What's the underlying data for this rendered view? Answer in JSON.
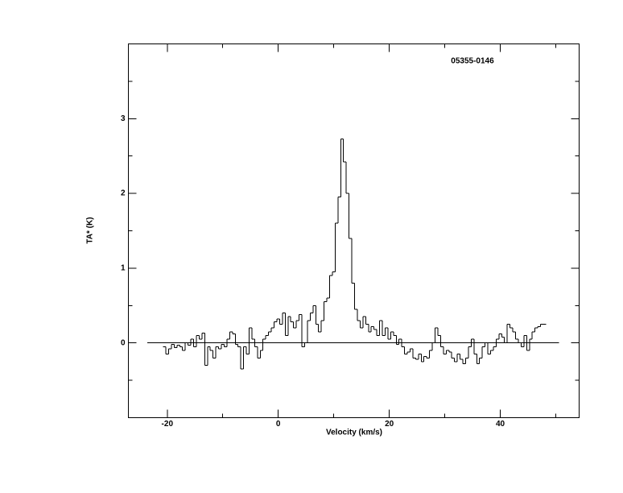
{
  "chart_data": {
    "type": "step",
    "title": "05355-0146",
    "x_label": "Velocity (km/s)",
    "y_label": "TA* (K)",
    "x": [
      -20.5,
      -20,
      -19.5,
      -19,
      -18.5,
      -18,
      -17.5,
      -17,
      -16.5,
      -16,
      -15.5,
      -15,
      -14.5,
      -14,
      -13.5,
      -13,
      -12.5,
      -12,
      -11.5,
      -11,
      -10.5,
      -10,
      -9.5,
      -9,
      -8.5,
      -8,
      -7.5,
      -7,
      -6.5,
      -6,
      -5.5,
      -5,
      -4.5,
      -4,
      -3.5,
      -3,
      -2.5,
      -2,
      -1.5,
      -1,
      -0.5,
      0,
      0.5,
      1,
      1.5,
      2,
      2.5,
      3,
      3.5,
      4,
      4.5,
      5,
      5.5,
      6,
      6.5,
      7,
      7.5,
      8,
      8.5,
      9,
      9.5,
      10,
      10.5,
      11,
      11.5,
      12,
      12.5,
      13,
      13.5,
      14,
      14.5,
      15,
      15.5,
      16,
      16.5,
      17,
      17.5,
      18,
      18.5,
      19,
      19.5,
      20,
      20.5,
      21,
      21.5,
      22,
      22.5,
      23,
      23.5,
      24,
      24.5,
      25,
      25.5,
      26,
      26.5,
      27,
      27.5,
      28,
      28.5,
      29,
      29.5,
      30,
      30.5,
      31,
      31.5,
      32,
      32.5,
      33,
      33.5,
      34,
      34.5,
      35,
      35.5,
      36,
      36.5,
      37,
      37.5,
      38,
      38.5,
      39,
      39.5,
      40,
      40.5,
      41,
      41.5,
      42,
      42.5,
      43,
      43.5,
      44,
      44.5,
      45,
      45.5,
      46,
      46.5,
      47,
      47.5,
      48
    ],
    "values": [
      -0.05,
      -0.15,
      -0.08,
      -0.02,
      -0.06,
      -0.03,
      -0.05,
      -0.1,
      0.0,
      -0.03,
      0.05,
      -0.05,
      0.1,
      0.05,
      0.13,
      -0.3,
      -0.05,
      -0.1,
      -0.2,
      -0.05,
      -0.08,
      -0.02,
      -0.05,
      0.05,
      0.15,
      0.12,
      -0.02,
      -0.05,
      -0.35,
      -0.05,
      -0.15,
      0.2,
      0.05,
      -0.05,
      -0.2,
      -0.1,
      0.05,
      0.1,
      0.15,
      0.2,
      0.28,
      0.32,
      0.25,
      0.4,
      0.1,
      0.35,
      0.28,
      0.2,
      0.3,
      0.38,
      -0.05,
      0.0,
      0.3,
      0.4,
      0.5,
      0.25,
      0.15,
      0.3,
      0.55,
      0.6,
      0.9,
      0.95,
      1.6,
      1.95,
      2.73,
      2.42,
      2.0,
      1.4,
      0.8,
      0.45,
      0.3,
      0.2,
      0.35,
      0.25,
      0.15,
      0.22,
      0.18,
      0.1,
      0.3,
      0.1,
      0.2,
      0.05,
      0.15,
      0.1,
      -0.02,
      0.05,
      -0.05,
      -0.15,
      -0.12,
      -0.08,
      -0.2,
      -0.22,
      -0.15,
      -0.25,
      -0.18,
      -0.2,
      -0.1,
      0.0,
      0.2,
      0.1,
      -0.05,
      -0.15,
      -0.1,
      -0.12,
      -0.2,
      -0.25,
      -0.15,
      -0.22,
      -0.28,
      -0.2,
      -0.05,
      0.05,
      -0.15,
      -0.28,
      -0.2,
      -0.05,
      0.0,
      -0.15,
      -0.1,
      -0.05,
      0.05,
      0.12,
      0.08,
      0.0,
      0.25,
      0.2,
      0.15,
      0.05,
      0.0,
      -0.05,
      0.1,
      -0.1,
      0.05,
      0.15,
      0.2,
      0.22,
      0.25,
      0.25
    ],
    "color": "#000000",
    "xlim": [
      -27,
      54.2
    ],
    "ylim": [
      -1,
      4
    ],
    "xticks": [
      -20,
      0,
      20,
      40
    ],
    "yticks": [
      0,
      1,
      2,
      3
    ],
    "x_minor_ticks": [
      -10,
      10,
      30,
      50
    ],
    "y_minor_ticks": [
      -0.5,
      0.5,
      1.5,
      2.5,
      3.5
    ],
    "baseline_range": [
      -23.6,
      50.6
    ]
  }
}
